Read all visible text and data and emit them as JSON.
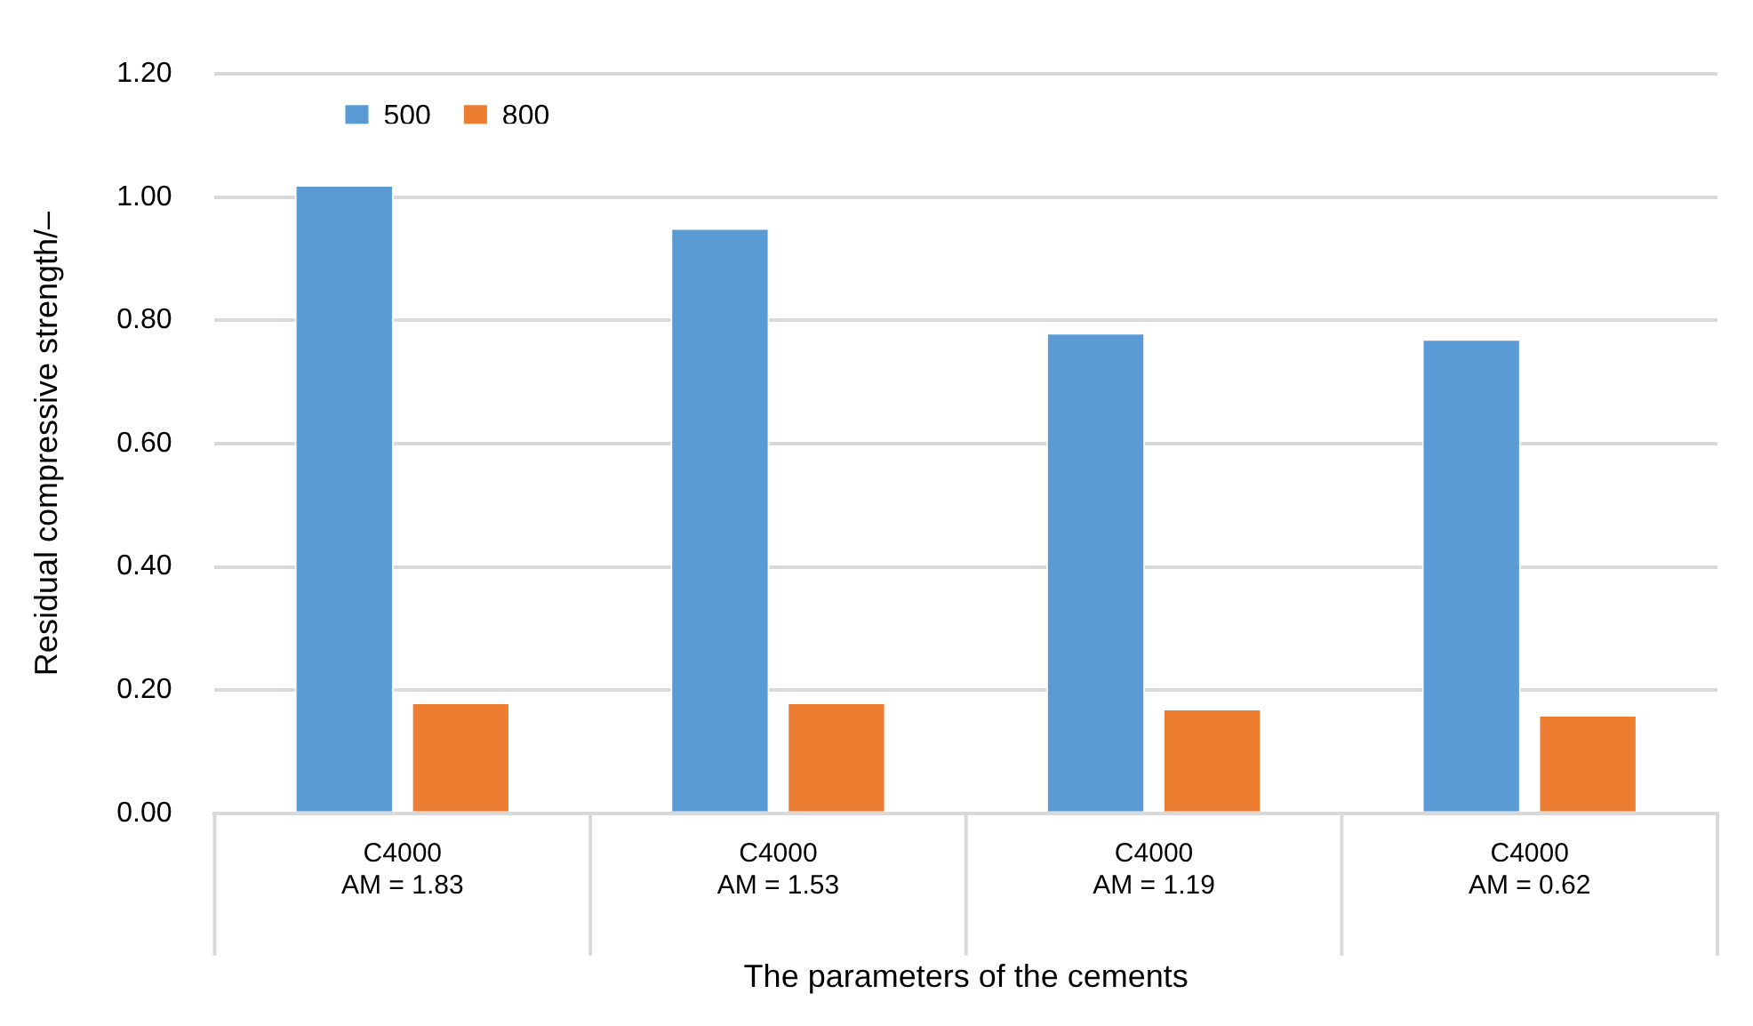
{
  "chart_data": {
    "type": "bar",
    "xlabel": "The parameters of the cements",
    "ylabel": "Residual compressive strength/–",
    "categories": [
      "C4000\nAM = 1.83",
      "C4000\nAM = 1.53",
      "C4000\nAM = 1.19",
      "C4000\nAM = 0.62"
    ],
    "series": [
      {
        "name": "500",
        "color": "#5b9bd5",
        "values": [
          1.02,
          0.95,
          0.78,
          0.77
        ]
      },
      {
        "name": "800",
        "color": "#ed7d31",
        "values": [
          0.18,
          0.18,
          0.17,
          0.16
        ]
      }
    ],
    "ylim": [
      0,
      1.2
    ],
    "yticks": [
      {
        "value": 0,
        "label": "0.00"
      },
      {
        "value": 0.2,
        "label": "0.20"
      },
      {
        "value": 0.4,
        "label": "0.40"
      },
      {
        "value": 0.6,
        "label": "0.60"
      },
      {
        "value": 0.8,
        "label": "0.80"
      },
      {
        "value": 1.0,
        "label": "1.00"
      },
      {
        "value": 1.2,
        "label": "1.20"
      }
    ],
    "grid": "y",
    "legend": "top left"
  }
}
